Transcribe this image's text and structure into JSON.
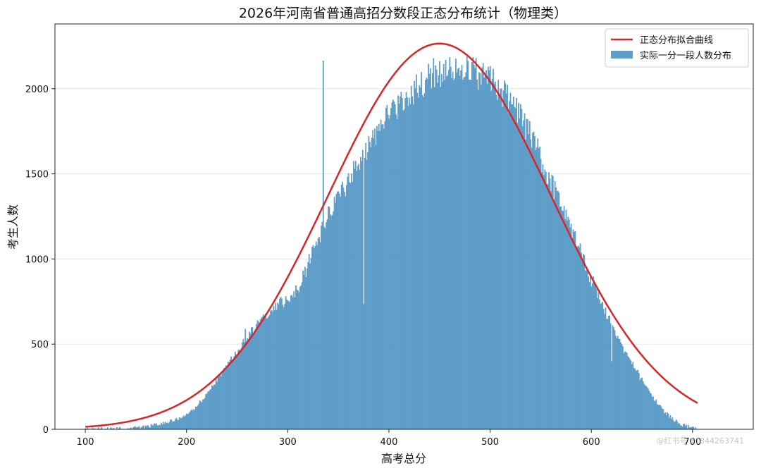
{
  "chart_data": {
    "type": "bar",
    "title": "2026年河南省普通高招分数段正态分布统计（物理类）",
    "xlabel": "高考总分",
    "ylabel": "考生人数",
    "xlim": [
      70,
      760
    ],
    "ylim": [
      0,
      2380
    ],
    "xticks": [
      100,
      200,
      300,
      400,
      500,
      600,
      700
    ],
    "yticks": [
      0,
      500,
      1000,
      1500,
      2000
    ],
    "grid": "horizontal",
    "legend_position": "top-right",
    "colors": {
      "bars": "#5f9ec9",
      "curve": "#d62728"
    },
    "series": [
      {
        "name": "实际一分一段人数分布",
        "type": "bar",
        "bin_width": 1,
        "x_range": [
          100,
          705
        ],
        "profile_x": [
          100,
          140,
          160,
          180,
          200,
          210,
          220,
          230,
          240,
          250,
          260,
          270,
          280,
          290,
          300,
          310,
          320,
          330,
          340,
          350,
          360,
          370,
          380,
          390,
          400,
          410,
          420,
          430,
          440,
          450,
          460,
          470,
          480,
          490,
          500,
          510,
          520,
          530,
          540,
          550,
          560,
          570,
          580,
          590,
          600,
          610,
          620,
          630,
          640,
          650,
          660,
          670,
          680,
          690,
          700,
          705
        ],
        "profile_y": [
          0,
          5,
          15,
          40,
          80,
          130,
          210,
          300,
          380,
          460,
          540,
          620,
          680,
          730,
          760,
          820,
          960,
          1130,
          1260,
          1370,
          1470,
          1570,
          1660,
          1760,
          1840,
          1900,
          1960,
          2020,
          2070,
          2100,
          2140,
          2150,
          2110,
          2070,
          2040,
          1990,
          1930,
          1840,
          1720,
          1590,
          1460,
          1320,
          1180,
          1030,
          880,
          740,
          610,
          490,
          380,
          290,
          200,
          120,
          60,
          25,
          8,
          0
        ],
        "spikes": [
          {
            "x": 335,
            "y": 2165
          },
          {
            "x": 620,
            "y": 400
          },
          {
            "x": 375,
            "y": 735
          },
          {
            "x": 258,
            "y": 590
          }
        ]
      },
      {
        "name": "正态分布拟合曲线",
        "type": "line",
        "distribution": "normal",
        "mean": 450,
        "std": 110,
        "peak": 2265,
        "x_range": [
          100,
          705
        ]
      }
    ]
  },
  "watermark": "@红书号 11844263741"
}
